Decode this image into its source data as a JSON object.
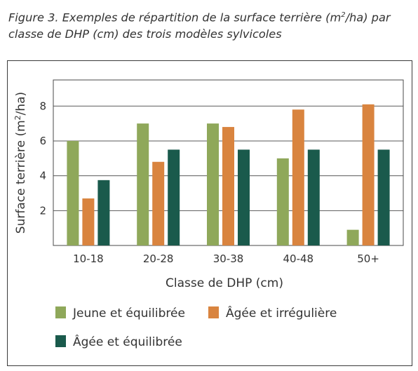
{
  "caption": {
    "line1_pre": "Figure 3. Exemples de répartition de la surface terrière (m",
    "line1_sup": "2",
    "line1_post": "/ha) par",
    "line2": "classe de DHP (cm) des trois modèles sylvicoles"
  },
  "chart_data": {
    "type": "bar",
    "categories": [
      "10-18",
      "20-28",
      "30-38",
      "40-48",
      "50+"
    ],
    "series": [
      {
        "name": "Jeune et équilibrée",
        "color": "#8fa85a",
        "values": [
          6.0,
          7.0,
          7.0,
          5.0,
          0.9
        ]
      },
      {
        "name": "Âgée et irrégulière",
        "color": "#d9843f",
        "values": [
          2.7,
          4.8,
          6.8,
          7.8,
          8.1
        ]
      },
      {
        "name": "Âgée et équilibrée",
        "color": "#1a5a4c",
        "values": [
          3.75,
          5.5,
          5.5,
          5.5,
          5.5
        ]
      }
    ],
    "xlabel": "Classe de DHP (cm)",
    "ylabel_pre": "Surface terrière (m",
    "ylabel_sup": "2",
    "ylabel_post": "/ha)",
    "ylim": [
      0,
      9.5
    ],
    "yticks": [
      2,
      4,
      6,
      8
    ],
    "grid": true,
    "legend_position": "bottom"
  }
}
